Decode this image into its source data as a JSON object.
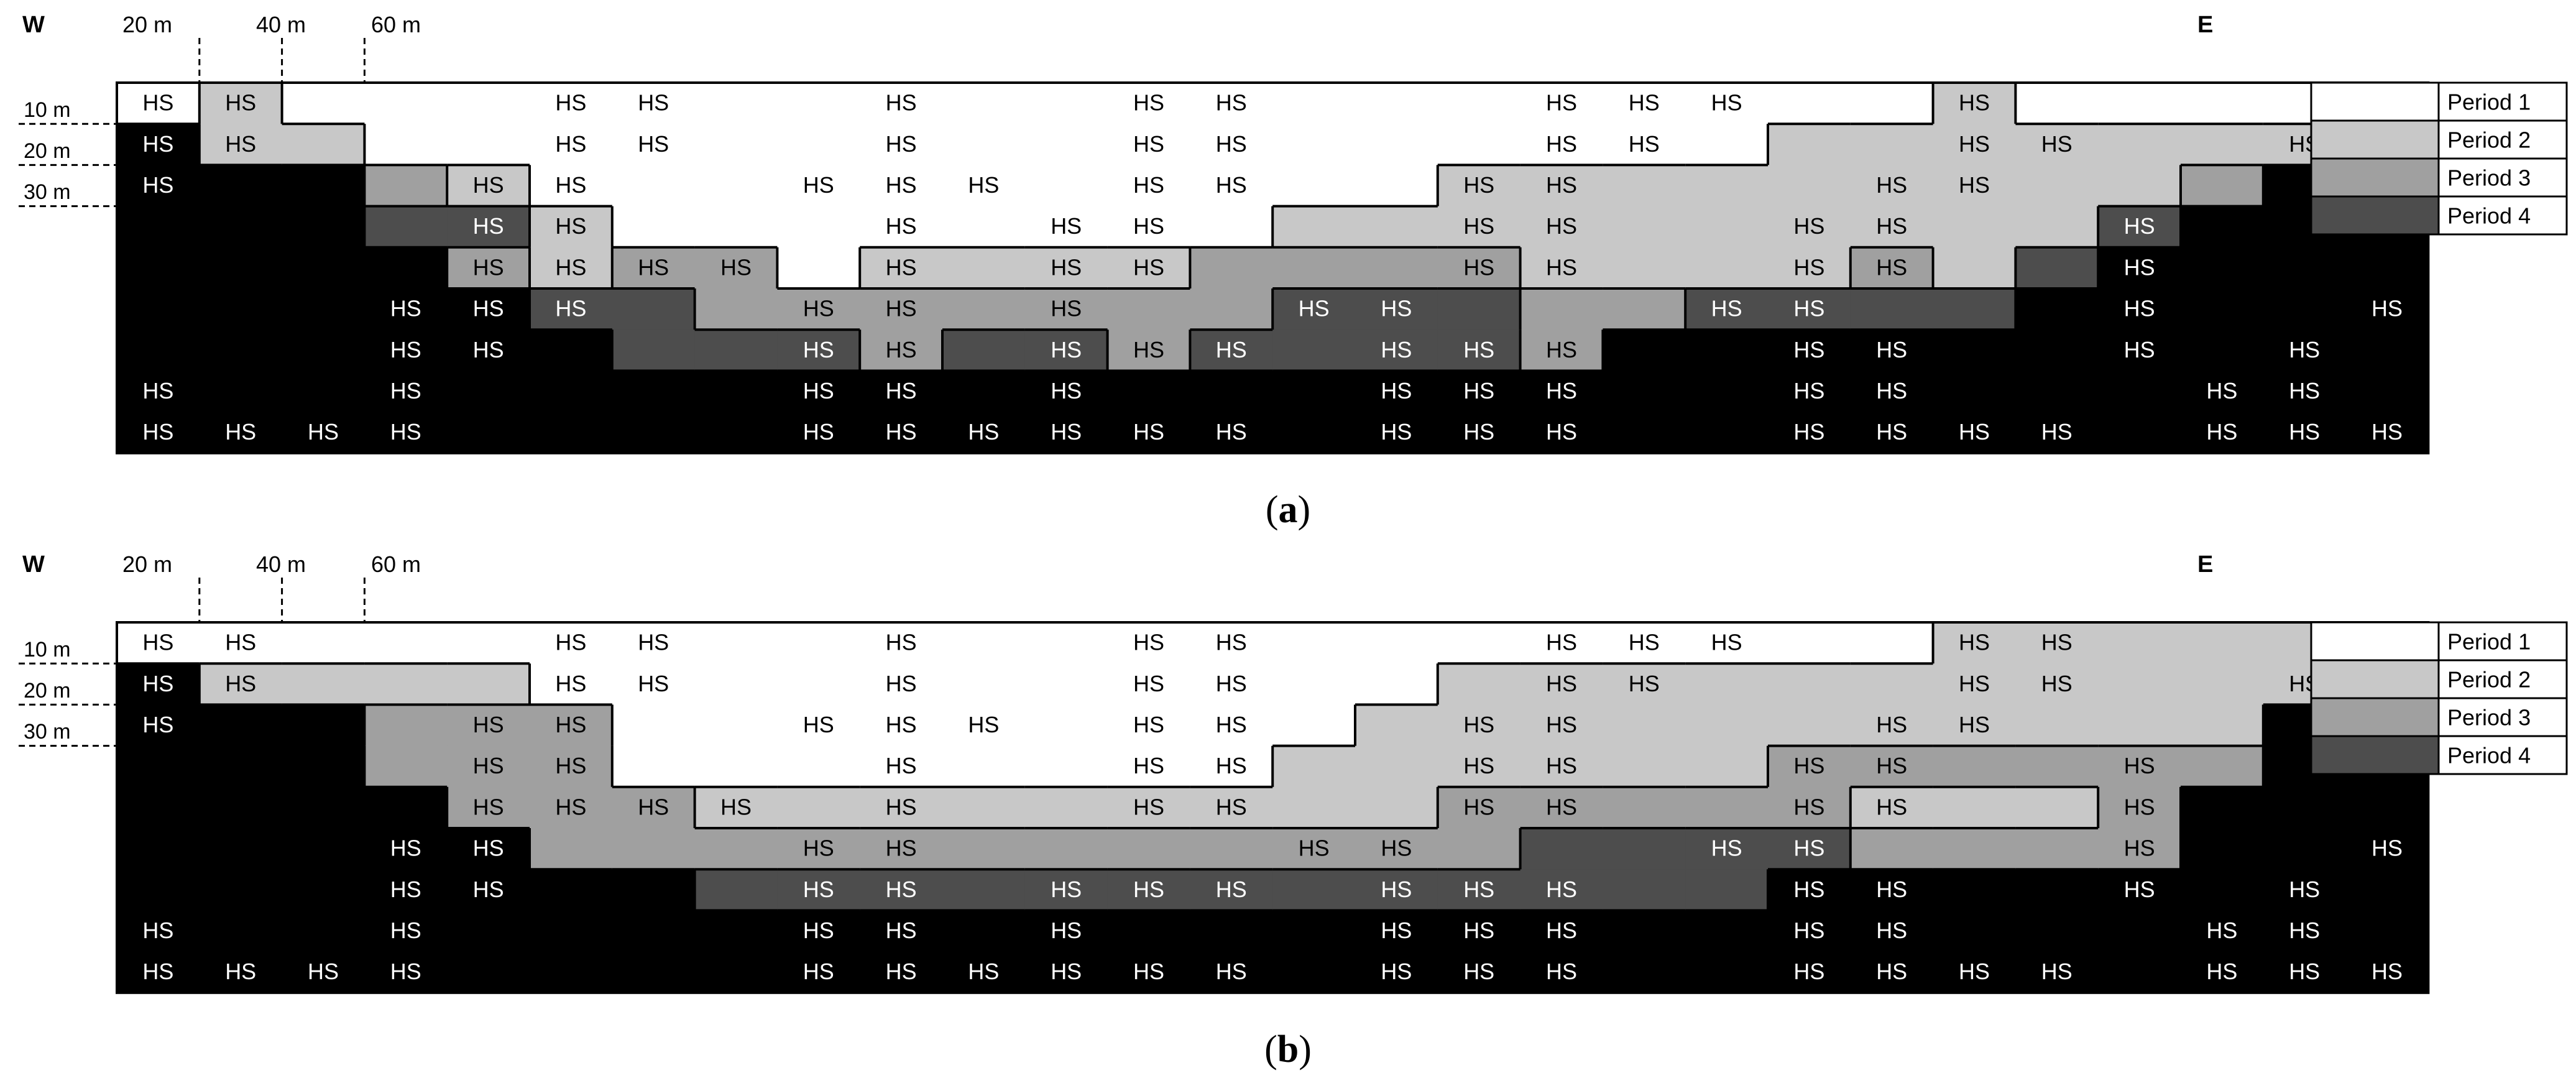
{
  "colors": {
    "period_1": "#ffffff",
    "period_2": "#c8c8c8",
    "period_3": "#a0a0a0",
    "period_4": "#4d4d4d",
    "remaining": "#000000",
    "text_dark": "#000000",
    "text_light": "#ffffff"
  },
  "legend": [
    {
      "label": "Period 1",
      "code": 1
    },
    {
      "label": "Period 2",
      "code": 2
    },
    {
      "label": "Period 3",
      "code": 3
    },
    {
      "label": "Period 4",
      "code": 4
    }
  ],
  "hs_label": "HS",
  "panels": [
    {
      "caption_letter": "a",
      "caption_open": "(",
      "caption_close": ")",
      "west": "W",
      "east": "E",
      "width_ticks": [
        "20 m",
        "40 m",
        "60 m"
      ],
      "depth_ticks": [
        "10 m",
        "20 m",
        "30 m"
      ],
      "grid": [
        "1211111111111111111111211112",
        "0221111111111111111122222220",
        "0003211111111111222222222300",
        "0004421111111122222222224000",
        "0000323312222333322223240000",
        "0000044333333344433444400000",
        "0000004443443444430000000000",
        "0000000000000000000000000000",
        "0000000000000000000000000000"
      ],
      "hs": [
        "1100011001001100011100120001",
        "1100011001001100011000110011",
        "1000110011101100110001100001",
        "0000110001011000110011001001",
        "0000111101011000110011001000",
        "0001110011010011000110001001",
        "0001100011011101110011001010",
        "1001000011010001110011000110",
        "1111000011111101110011110111"
      ]
    },
    {
      "caption_letter": "b",
      "caption_open": "(",
      "caption_close": ")",
      "west": "W",
      "east": "E",
      "width_ticks": [
        "20 m",
        "40 m",
        "60 m"
      ],
      "depth_ticks": [
        "10 m",
        "20 m",
        "30 m"
      ],
      "grid": [
        "1111111111111111111111222222",
        "0222211111111111222222222220",
        "0003331111111112222222222200",
        "0003331111111122222233333300",
        "0000333222222222333332223000",
        "0000033333333333344443333000",
        "0000000444444444444400000000",
        "0000000000000000000000000000",
        "0000000000000000000000000000"
      ],
      "hs": [
        "1100011001001100011100110001",
        "1100011001001100011000110011",
        "1000110011101100110001100001",
        "0000110001001100110011001001",
        "0000111101001100110011001000",
        "0001100011000011000110001001",
        "0001100011011101110011001010",
        "1001000011010001110011000110",
        "1111000011111101110011110111"
      ]
    }
  ]
}
